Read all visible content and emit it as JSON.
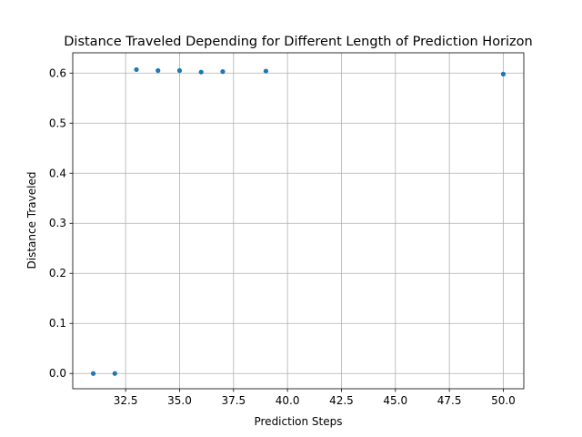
{
  "chart_data": {
    "type": "scatter",
    "title": "Distance Traveled Depending for Different Length of Prediction Horizon",
    "xlabel": "Prediction Steps",
    "ylabel": "Distance Traveled",
    "xlim": [
      30.05,
      50.95
    ],
    "ylim": [
      -0.0305,
      0.6405
    ],
    "xticks": [
      32.5,
      35.0,
      37.5,
      40.0,
      42.5,
      45.0,
      47.5,
      50.0
    ],
    "xtick_labels": [
      "32.5",
      "35.0",
      "37.5",
      "40.0",
      "42.5",
      "45.0",
      "47.5",
      "50.0"
    ],
    "yticks": [
      0.0,
      0.1,
      0.2,
      0.3,
      0.4,
      0.5,
      0.6
    ],
    "ytick_labels": [
      "0.0",
      "0.1",
      "0.2",
      "0.3",
      "0.4",
      "0.5",
      "0.6"
    ],
    "grid": true,
    "marker_color": "#1f77b4",
    "points": [
      {
        "x": 31,
        "y": 0.0
      },
      {
        "x": 32,
        "y": 0.0
      },
      {
        "x": 33,
        "y": 0.607
      },
      {
        "x": 34,
        "y": 0.605
      },
      {
        "x": 35,
        "y": 0.605
      },
      {
        "x": 36,
        "y": 0.602
      },
      {
        "x": 37,
        "y": 0.603
      },
      {
        "x": 39,
        "y": 0.604
      },
      {
        "x": 50,
        "y": 0.598
      }
    ]
  }
}
